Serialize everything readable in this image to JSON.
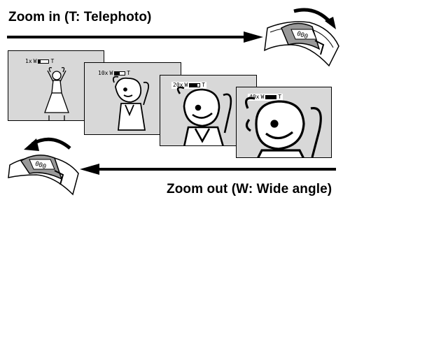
{
  "headings": {
    "zoom_in": "Zoom in (T: Telephoto)",
    "zoom_out": "Zoom out (W: Wide angle)"
  },
  "frames": [
    {
      "zoom": "1x",
      "wide": "W",
      "tele": "T",
      "level": 0.2
    },
    {
      "zoom": "10x",
      "wide": "W",
      "tele": "T",
      "level": 0.5
    },
    {
      "zoom": "20x",
      "wide": "W",
      "tele": "T",
      "level": 0.75
    },
    {
      "zoom": "40x",
      "wide": "W",
      "tele": "T",
      "level": 0.95
    }
  ],
  "colors": {
    "screen": "#d8d8d8",
    "ink": "#000000"
  },
  "icons": {
    "zoom_in_lever": "zoom-lever-tele-icon",
    "zoom_out_lever": "zoom-lever-wide-icon"
  }
}
